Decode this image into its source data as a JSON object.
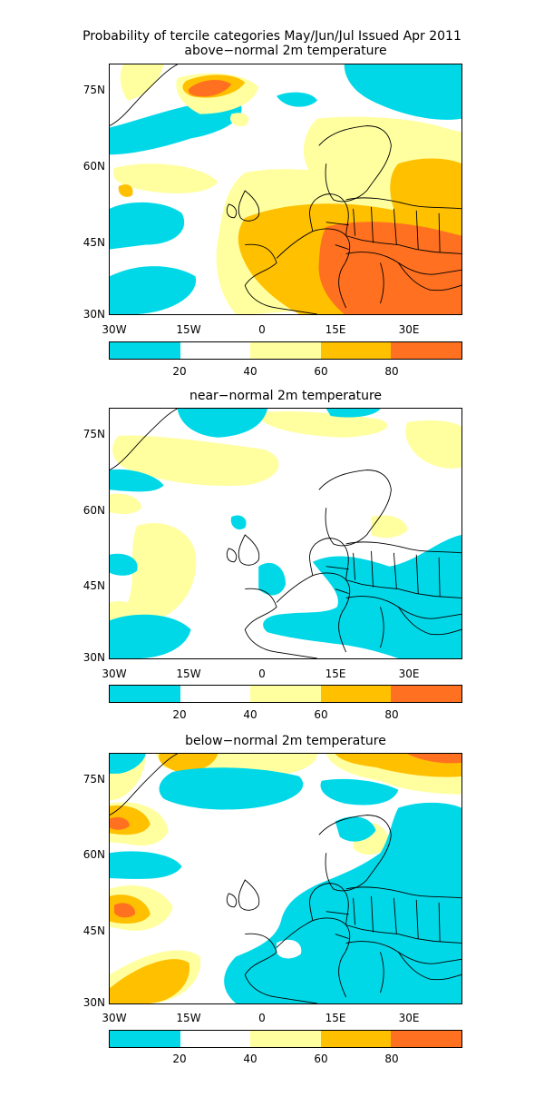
{
  "title": "Probability of tercile categories May/Jun/Jul Issued Apr 2011",
  "panels": [
    {
      "subtitle": "above−normal 2m temperature"
    },
    {
      "subtitle": "near−normal 2m temperature"
    },
    {
      "subtitle": "below−normal 2m temperature"
    }
  ],
  "lat_ticks": [
    "75N",
    "60N",
    "45N",
    "30N"
  ],
  "lon_ticks": [
    "30W",
    "15W",
    "0",
    "15E",
    "30E"
  ],
  "colorbar": {
    "labels": [
      "20",
      "40",
      "60",
      "80"
    ],
    "colors": [
      "#00D8E8",
      "#FFFFFF",
      "#FFFFA0",
      "#FFC000",
      "#FF7020"
    ]
  }
}
